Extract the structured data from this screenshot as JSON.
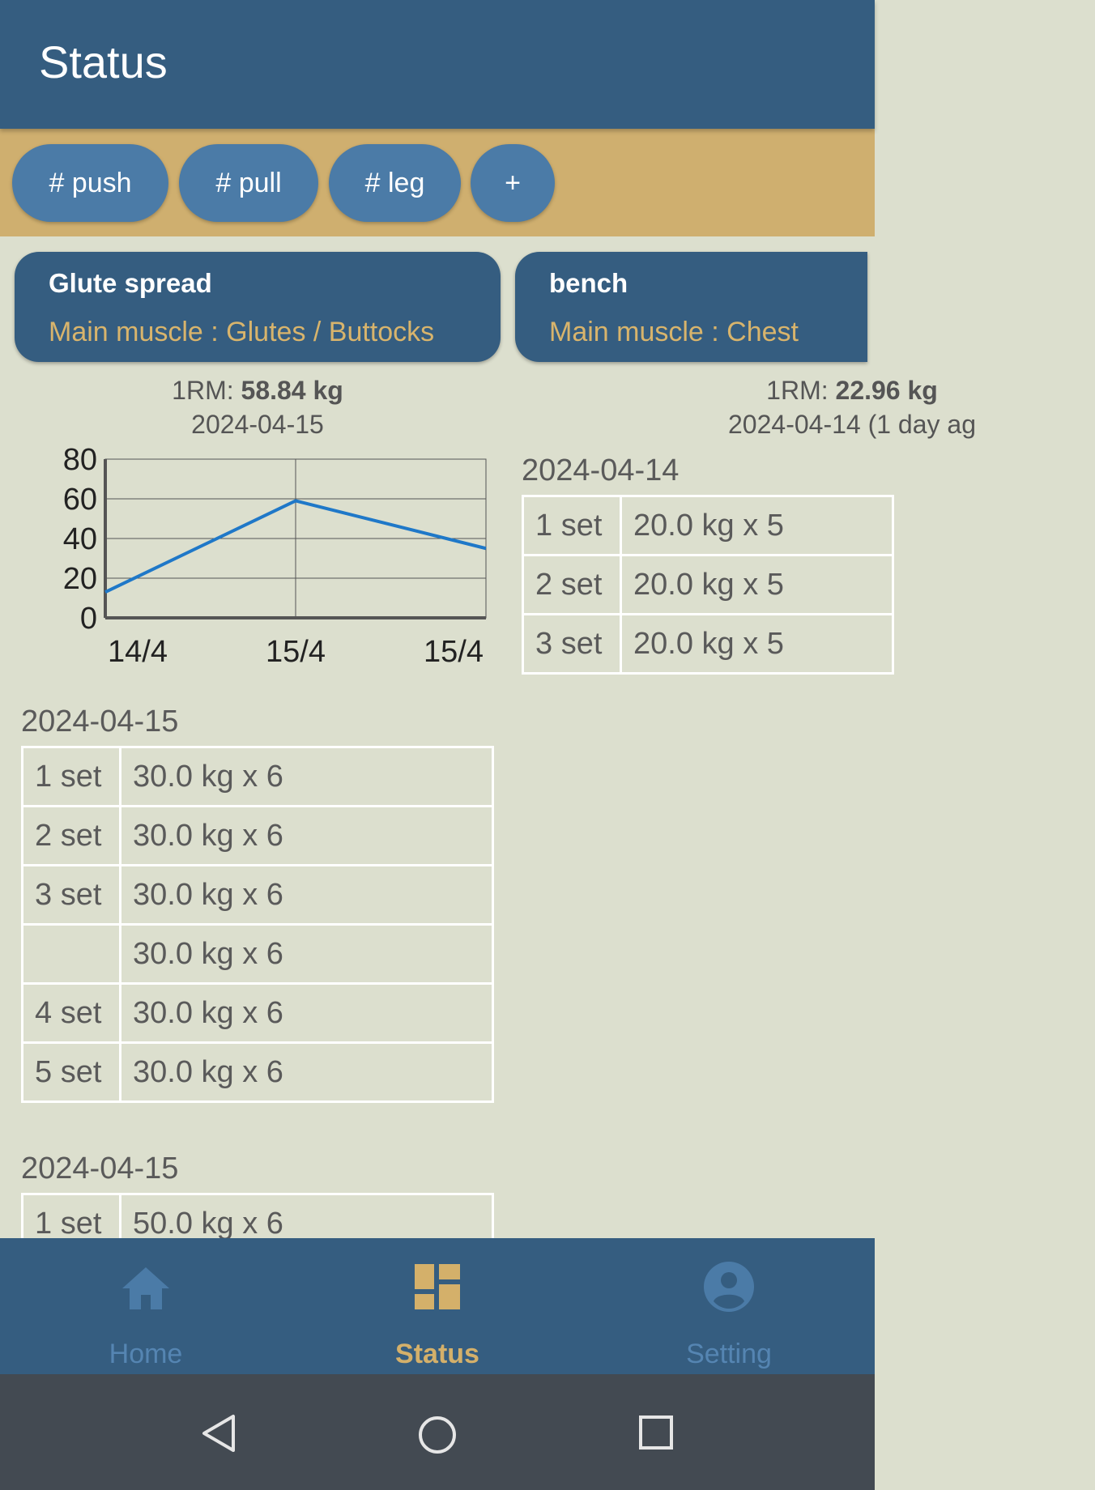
{
  "app_bar": {
    "title": "Status"
  },
  "tags": [
    {
      "label": "# push"
    },
    {
      "label": "# pull"
    },
    {
      "label": "# leg"
    },
    {
      "label": "+"
    }
  ],
  "exercises": [
    {
      "name": "Glute spread",
      "muscle": "Main muscle : Glutes / Buttocks",
      "rm_label": "1RM: ",
      "rm_value": "58.84 kg",
      "rm_date": "2024-04-15",
      "chart_data": {
        "type": "line",
        "categories": [
          "14/4",
          "15/4",
          "15/4"
        ],
        "y_ticks": [
          "80",
          "60",
          "40",
          "20",
          "0"
        ],
        "ylim": [
          0,
          80
        ],
        "grid": true,
        "series": [
          {
            "values": [
              13,
              59,
              35
            ],
            "color": "#1f78c8"
          }
        ]
      },
      "sessions": [
        {
          "date": "2024-04-15",
          "rows": [
            {
              "set": "1 set",
              "value": "30.0 kg x 6"
            },
            {
              "set": "2 set",
              "value": "30.0 kg x 6"
            },
            {
              "set": "3 set",
              "value": "30.0 kg x 6"
            },
            {
              "set": "",
              "value": "30.0 kg x 6"
            },
            {
              "set": "4 set",
              "value": "30.0 kg x 6"
            },
            {
              "set": "5 set",
              "value": "30.0 kg x 6"
            }
          ]
        },
        {
          "date": "2024-04-15",
          "rows": [
            {
              "set": "1 set",
              "value": "50.0 kg x 6"
            }
          ]
        }
      ]
    },
    {
      "name": "bench",
      "muscle": "Main muscle : Chest",
      "rm_label": "1RM: ",
      "rm_value": "22.96 kg",
      "rm_date": "2024-04-14 (1 day ag",
      "sessions": [
        {
          "date": "2024-04-14",
          "rows": [
            {
              "set": "1 set",
              "value": "20.0 kg x 5"
            },
            {
              "set": "2 set",
              "value": "20.0 kg x 5"
            },
            {
              "set": "3 set",
              "value": "20.0 kg x 5"
            }
          ]
        }
      ]
    }
  ],
  "bottom_nav": [
    {
      "label": "Home",
      "icon": "home-icon",
      "active": false
    },
    {
      "label": "Status",
      "icon": "dashboard-icon",
      "active": true
    },
    {
      "label": "Setting",
      "icon": "account-circle-icon",
      "active": false
    }
  ],
  "colors": {
    "primary": "#355d80",
    "accent": "#d4b06a",
    "nav_inactive": "#5585b2",
    "background": "#dcdfce"
  }
}
